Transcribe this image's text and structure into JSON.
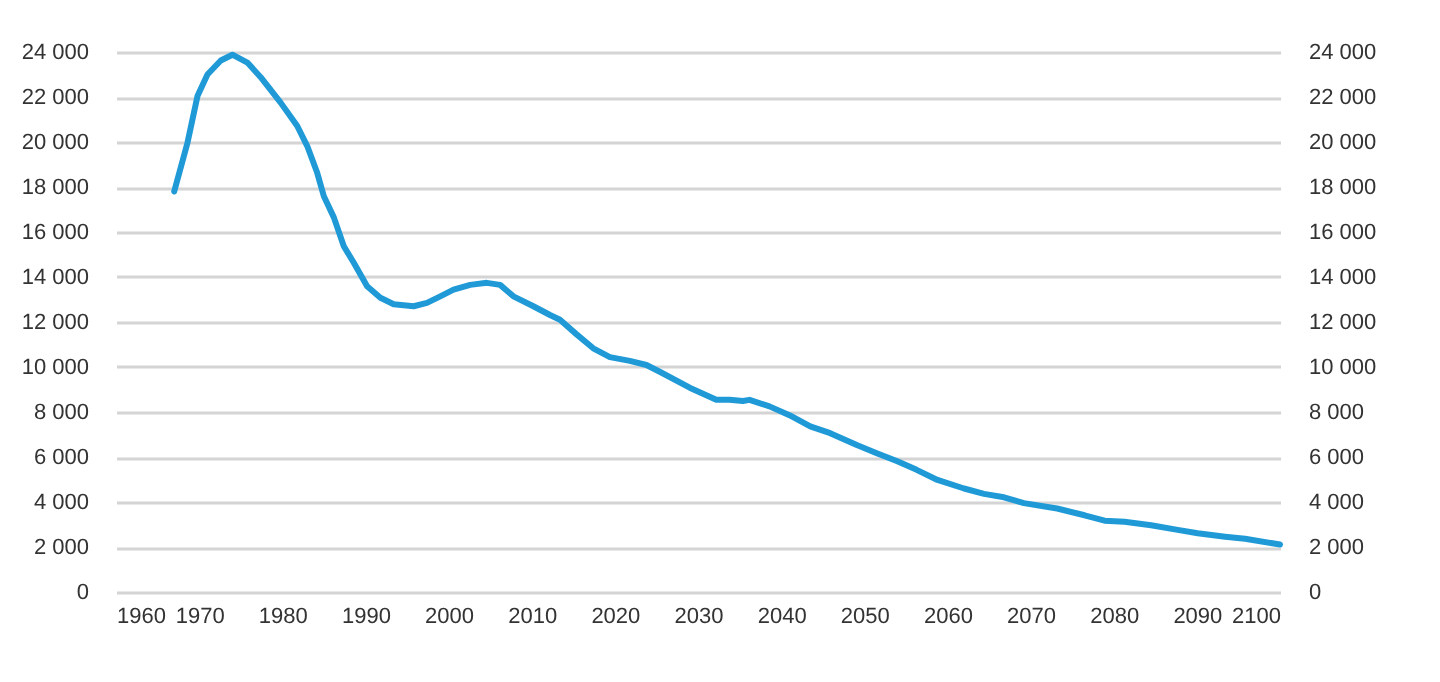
{
  "chart_data": {
    "type": "line",
    "x": [
      1967,
      1968.6,
      1969.8,
      1971,
      1972.6,
      1974,
      1975.8,
      1977.4,
      1979.8,
      1981.8,
      1983,
      1984.2,
      1985,
      1986.2,
      1987.4,
      1988.6,
      1990.2,
      1991.8,
      1993.4,
      1995.8,
      1997.4,
      1999,
      2000.6,
      2002.6,
      2004.6,
      2006.2,
      2007.8,
      2010.2,
      2012.2,
      2013.4,
      2015.4,
      2017.4,
      2019.4,
      2021.8,
      2023.8,
      2025.4,
      2029,
      2032.2,
      2033.8,
      2035.4,
      2036.2,
      2038.6,
      2041,
      2043.5,
      2045.9,
      2049.1,
      2051.5,
      2053.9,
      2056.3,
      2058.8,
      2062,
      2064.4,
      2066.8,
      2069.2,
      2073.2,
      2076.5,
      2078.9,
      2081.3,
      2084.5,
      2087.7,
      2090.1,
      2093.4,
      2095.8,
      2100
    ],
    "series": [
      {
        "color": "#1f9ad7",
        "values": [
          17800,
          19970,
          22040,
          23000,
          23620,
          23880,
          23530,
          22880,
          21750,
          20710,
          19820,
          18630,
          17590,
          16650,
          15370,
          14630,
          13590,
          13080,
          12790,
          12700,
          12850,
          13140,
          13440,
          13650,
          13740,
          13650,
          13140,
          12700,
          12310,
          12100,
          11450,
          10830,
          10440,
          10270,
          10090,
          9790,
          9080,
          8540,
          8540,
          8490,
          8540,
          8250,
          7860,
          7360,
          7060,
          6530,
          6170,
          5820,
          5430,
          4980,
          4600,
          4360,
          4210,
          3950,
          3710,
          3410,
          3170,
          3120,
          2970,
          2760,
          2610,
          2460,
          2370,
          2110
        ]
      }
    ],
    "xlim": [
      1960,
      2100
    ],
    "xticks": [
      1960,
      1970,
      1980,
      1990,
      2000,
      2010,
      2020,
      2030,
      2040,
      2050,
      2060,
      2070,
      2080,
      2090,
      2100
    ],
    "ylim": [
      0,
      24000
    ],
    "yticks": [
      0,
      {
        "value": 2000,
        "label": "2 000"
      },
      {
        "value": 4000,
        "label": "4 000"
      },
      {
        "value": 6000,
        "label": "6 000"
      },
      {
        "value": 8000,
        "label": "8 000"
      },
      {
        "value": 10000,
        "label": "10 000"
      },
      {
        "value": 12000,
        "label": "12 000"
      },
      {
        "value": 14000,
        "label": "14 000"
      },
      {
        "value": 16000,
        "label": "16 000"
      },
      {
        "value": 18000,
        "label": "18 000"
      },
      {
        "value": 20000,
        "label": "20 000"
      },
      {
        "value": 22000,
        "label": "22 000"
      },
      {
        "value": 24000,
        "label": "24 000"
      }
    ],
    "y2lim": [
      0,
      24000
    ],
    "y2ticks": [
      0,
      {
        "value": 2000,
        "label": "2 000"
      },
      {
        "value": 4000,
        "label": "4 000"
      },
      {
        "value": 6000,
        "label": "6 000"
      },
      {
        "value": 8000,
        "label": "8 000"
      },
      {
        "value": 10000,
        "label": "10 000"
      },
      {
        "value": 12000,
        "label": "12 000"
      },
      {
        "value": 14000,
        "label": "14 000"
      },
      {
        "value": 16000,
        "label": "16 000"
      },
      {
        "value": 18000,
        "label": "18 000"
      },
      {
        "value": 20000,
        "label": "20 000"
      },
      {
        "value": 22000,
        "label": "22 000"
      },
      {
        "value": 24000,
        "label": "24 000"
      }
    ],
    "grid": "y",
    "marker": "none",
    "line_style": "solid"
  }
}
